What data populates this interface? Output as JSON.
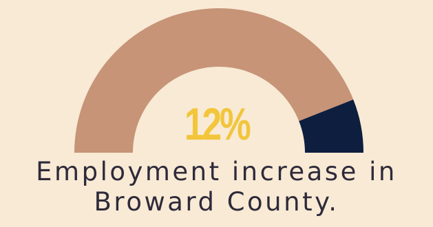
{
  "chart_data": {
    "type": "gauge",
    "value": 12,
    "max": 100,
    "value_label": "12%",
    "caption": "Employment increase in Broward County.",
    "colors": {
      "background": "#f8ead5",
      "track": "#c79477",
      "fill": "#0e1e3e",
      "value_text": "#f2c53b"
    }
  }
}
